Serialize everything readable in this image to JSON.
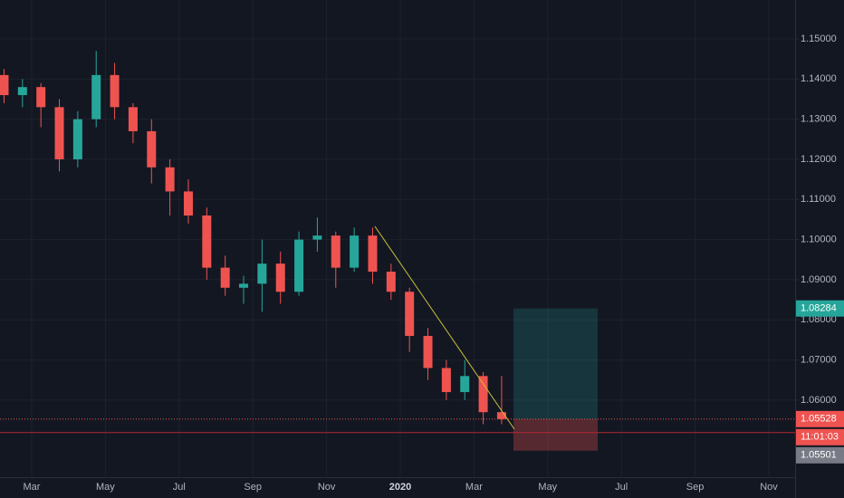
{
  "chart_data": {
    "type": "candlestick",
    "categories": [
      null,
      null,
      "Mar",
      null,
      null,
      null,
      "May",
      null,
      null,
      null,
      "Jul",
      null,
      null,
      null,
      "Sep",
      null,
      null,
      null,
      "Nov",
      null,
      null,
      null,
      "2020",
      null,
      null,
      null,
      "Mar",
      null,
      null,
      null,
      "May",
      null,
      null,
      null,
      "Jul",
      null,
      null,
      null,
      "Sep",
      null,
      null,
      null,
      "Nov",
      null
    ],
    "open": [
      1.141,
      1.136,
      1.138,
      1.133,
      1.12,
      1.13,
      1.141,
      1.133,
      1.127,
      1.118,
      1.112,
      1.106,
      1.093,
      1.088,
      1.089,
      1.094,
      1.087,
      1.1,
      1.101,
      1.093,
      1.101,
      1.092,
      1.087,
      1.076,
      1.068,
      1.062,
      1.066,
      1.057,
      null,
      null,
      null,
      null,
      null,
      null,
      null,
      null,
      null,
      null,
      null,
      null,
      null,
      null,
      null,
      null
    ],
    "high": [
      1.1425,
      1.14,
      1.139,
      1.135,
      1.132,
      1.147,
      1.144,
      1.134,
      1.13,
      1.12,
      1.115,
      1.108,
      1.096,
      1.091,
      1.1,
      1.097,
      1.102,
      1.1055,
      1.102,
      1.103,
      1.103,
      1.094,
      1.088,
      1.078,
      1.07,
      1.07,
      1.067,
      1.066,
      null,
      null,
      null,
      null,
      null,
      null,
      null,
      null,
      null,
      null,
      null,
      null,
      null,
      null,
      null,
      null
    ],
    "low": [
      1.134,
      1.133,
      1.128,
      1.117,
      1.118,
      1.128,
      1.13,
      1.124,
      1.114,
      1.106,
      1.104,
      1.09,
      1.086,
      1.084,
      1.082,
      1.084,
      1.086,
      1.097,
      1.088,
      1.092,
      1.089,
      1.085,
      1.072,
      1.065,
      1.06,
      1.06,
      1.054,
      1.054,
      null,
      null,
      null,
      null,
      null,
      null,
      null,
      null,
      null,
      null,
      null,
      null,
      null,
      null,
      null,
      null
    ],
    "close": [
      1.136,
      1.138,
      1.133,
      1.12,
      1.13,
      1.141,
      1.133,
      1.127,
      1.118,
      1.112,
      1.106,
      1.093,
      1.088,
      1.089,
      1.094,
      1.087,
      1.1,
      1.101,
      1.093,
      1.101,
      1.092,
      1.087,
      1.076,
      1.068,
      1.062,
      1.066,
      1.057,
      1.05528,
      null,
      null,
      null,
      null,
      null,
      null,
      null,
      null,
      null,
      null,
      null,
      null,
      null,
      null,
      null,
      null
    ],
    "up_color": "#26a69a",
    "down_color": "#ef5350",
    "ylim": [
      1.0408,
      1.1597
    ],
    "yticks": [
      {
        "value": 1.06,
        "label": "1.06000"
      },
      {
        "value": 1.07,
        "label": "1.07000"
      },
      {
        "value": 1.08,
        "label": "1.08000"
      },
      {
        "value": 1.09,
        "label": "1.09000"
      },
      {
        "value": 1.1,
        "label": "1.10000"
      },
      {
        "value": 1.11,
        "label": "1.11000"
      },
      {
        "value": 1.12,
        "label": "1.12000"
      },
      {
        "value": 1.13,
        "label": "1.13000"
      },
      {
        "value": 1.14,
        "label": "1.14000"
      },
      {
        "value": 1.15,
        "label": "1.15000"
      }
    ],
    "grid": true,
    "last_price": 1.05528,
    "countdown": "11:01:03",
    "price_marker": 1.05501,
    "horizontal_line": 1.0519,
    "position": {
      "target": 1.08284,
      "entry": 1.05528,
      "stop": 1.0474
    }
  }
}
